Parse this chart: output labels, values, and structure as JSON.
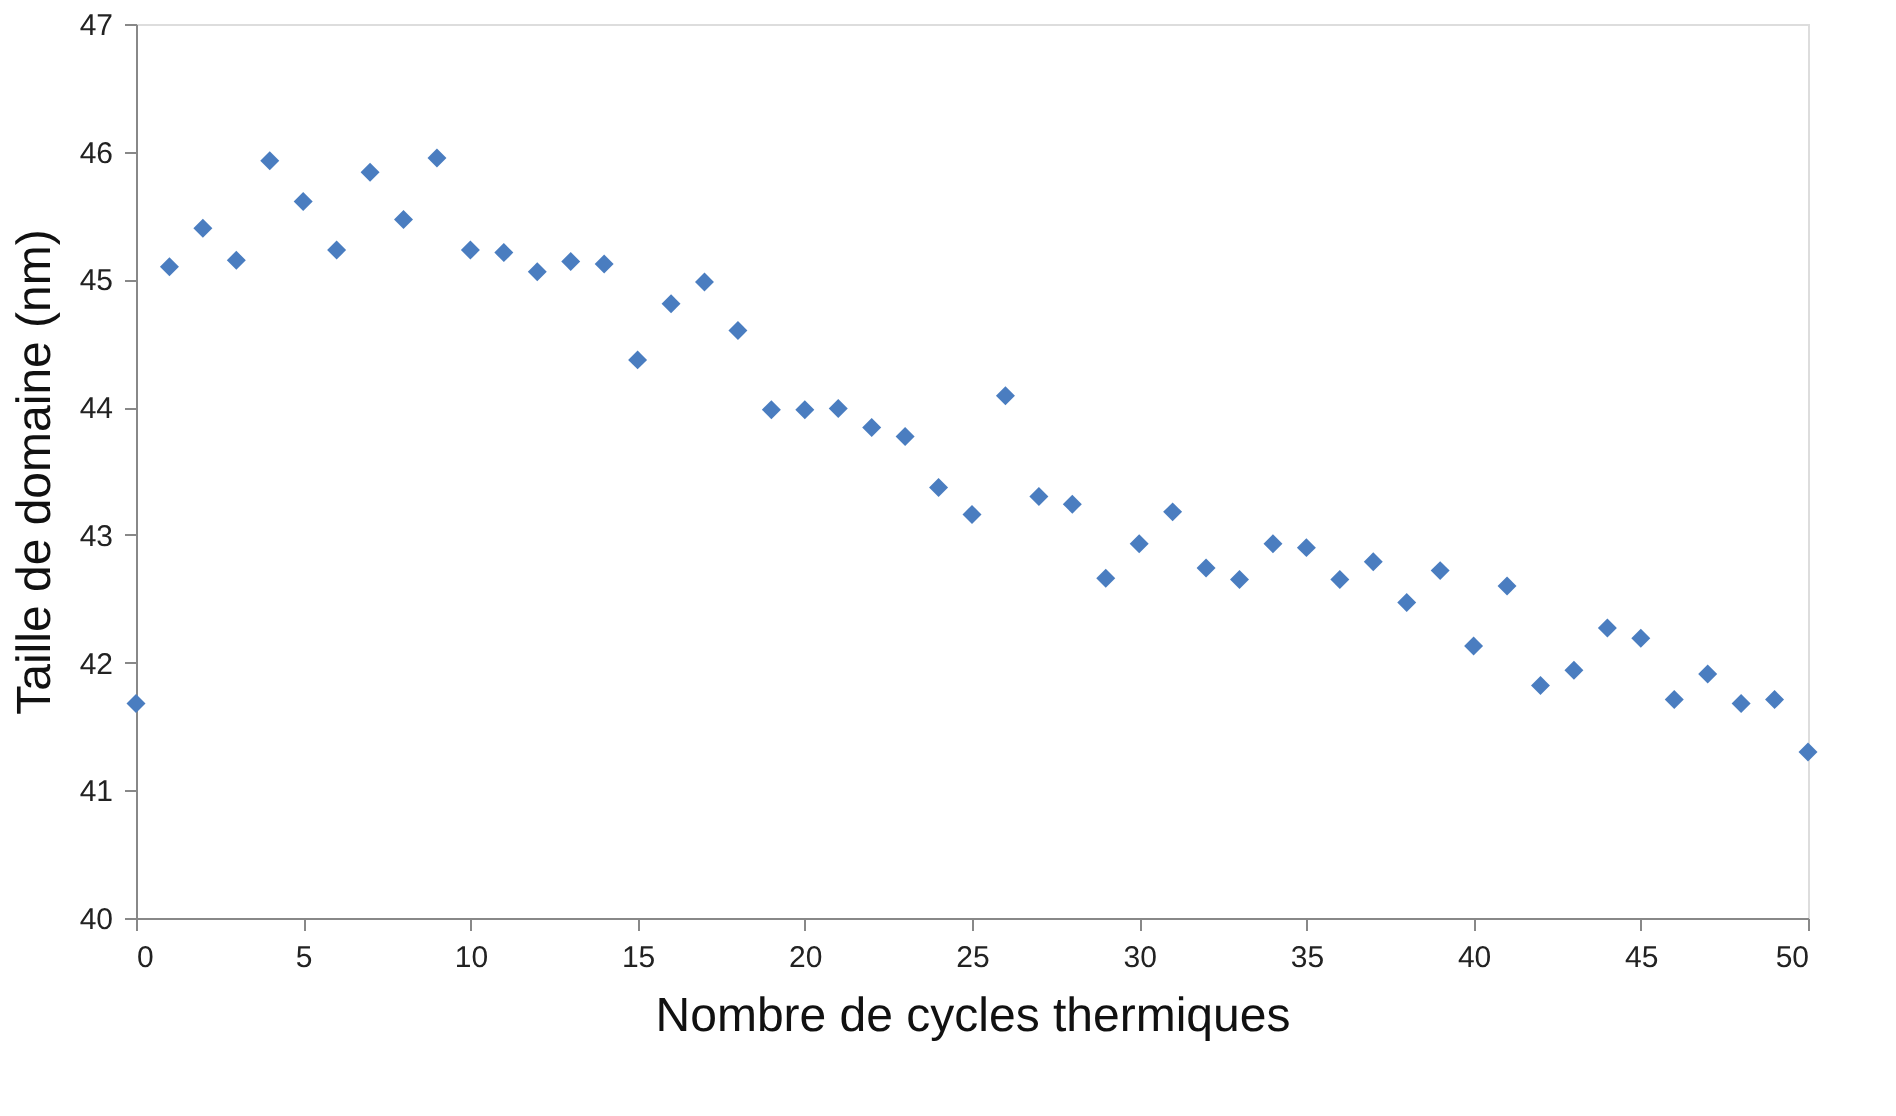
{
  "chart_data": {
    "type": "scatter",
    "xlabel": "Nombre de cycles thermiques",
    "ylabel": "Taille de domaine (nm)",
    "x": [
      0,
      1,
      2,
      3,
      4,
      5,
      6,
      7,
      8,
      9,
      10,
      11,
      12,
      13,
      14,
      15,
      16,
      17,
      18,
      19,
      20,
      21,
      22,
      23,
      24,
      25,
      26,
      27,
      28,
      29,
      30,
      31,
      32,
      33,
      34,
      35,
      36,
      37,
      38,
      39,
      40,
      41,
      42,
      43,
      44,
      45,
      46,
      47,
      48,
      49,
      50
    ],
    "series": [
      {
        "color": "#4a7dc0",
        "values": [
          41.68,
          45.1,
          45.4,
          45.15,
          45.93,
          45.61,
          45.23,
          45.84,
          45.47,
          45.95,
          45.23,
          45.21,
          45.06,
          45.14,
          45.12,
          44.37,
          44.81,
          44.98,
          44.6,
          43.98,
          43.98,
          43.99,
          43.84,
          43.77,
          43.37,
          43.16,
          44.09,
          43.3,
          43.24,
          42.66,
          42.93,
          43.18,
          42.74,
          42.65,
          42.93,
          42.9,
          42.65,
          42.79,
          42.47,
          42.72,
          42.13,
          42.6,
          41.82,
          41.94,
          42.27,
          42.19,
          41.71,
          41.91,
          41.68,
          41.71,
          41.3
        ]
      }
    ],
    "xlim": [
      0,
      50
    ],
    "xticks": [
      0,
      5,
      10,
      15,
      20,
      25,
      30,
      35,
      40,
      45,
      50
    ],
    "ylim": [
      40,
      47
    ],
    "yticks": [
      40,
      41,
      42,
      43,
      44,
      45,
      46,
      47
    ],
    "grid": false,
    "legend": false,
    "marker": "diamond"
  }
}
